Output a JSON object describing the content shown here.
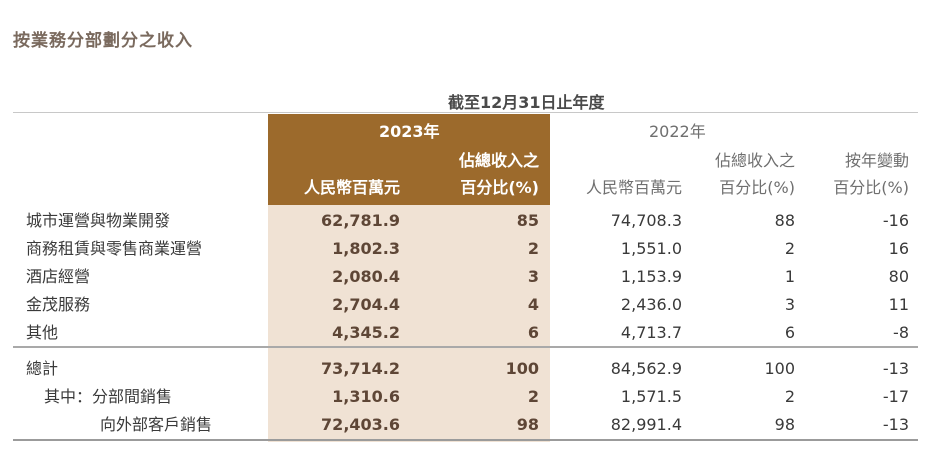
{
  "title": "按業務分部劃分之收入",
  "caption": "截至12月31日止年度",
  "header": {
    "year_2023": "2023年",
    "year_2022": "2022年",
    "share_line1": "佔總收入之",
    "share_line2": "百分比(%)",
    "rmb_millions": "人民幣百萬元",
    "change_line1": "按年變動",
    "change_line2": "百分比(%)"
  },
  "rows": [
    {
      "label": "城市運營與物業開發",
      "rev_2023": "62,781.9",
      "pct_2023": "85",
      "rev_2022": "74,708.3",
      "pct_2022": "88",
      "change": "-16"
    },
    {
      "label": "商務租賃與零售商業運營",
      "rev_2023": "1,802.3",
      "pct_2023": "2",
      "rev_2022": "1,551.0",
      "pct_2022": "2",
      "change": "16"
    },
    {
      "label": "酒店經營",
      "rev_2023": "2,080.4",
      "pct_2023": "3",
      "rev_2022": "1,153.9",
      "pct_2022": "1",
      "change": "80"
    },
    {
      "label": "金茂服務",
      "rev_2023": "2,704.4",
      "pct_2023": "4",
      "rev_2022": "2,436.0",
      "pct_2022": "3",
      "change": "11"
    },
    {
      "label": "其他",
      "rev_2023": "4,345.2",
      "pct_2023": "6",
      "rev_2022": "4,713.7",
      "pct_2022": "6",
      "change": "-8"
    },
    {
      "label": "總計",
      "rev_2023": "73,714.2",
      "pct_2023": "100",
      "rev_2022": "84,562.9",
      "pct_2022": "100",
      "change": "-13"
    },
    {
      "label": "其中：分部間銷售",
      "rev_2023": "1,310.6",
      "pct_2023": "2",
      "rev_2022": "1,571.5",
      "pct_2022": "2",
      "change": "-17"
    },
    {
      "label": "向外部客戶銷售",
      "rev_2023": "72,403.6",
      "pct_2023": "98",
      "rev_2022": "82,991.4",
      "pct_2022": "98",
      "change": "-13"
    }
  ]
}
